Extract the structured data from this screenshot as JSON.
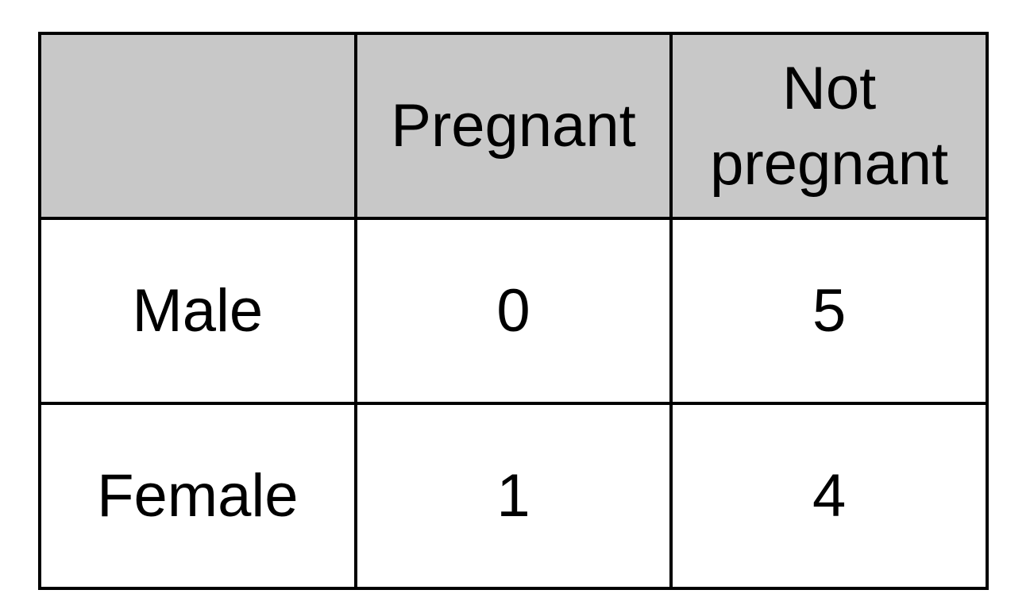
{
  "chart_data": {
    "type": "table",
    "columns": [
      "",
      "Pregnant",
      "Not pregnant"
    ],
    "rows": [
      {
        "label": "Male",
        "values": [
          "0",
          "5"
        ]
      },
      {
        "label": "Female",
        "values": [
          "1",
          "4"
        ]
      }
    ],
    "header_fill": "#c8c8c8",
    "border_color": "#000000"
  }
}
